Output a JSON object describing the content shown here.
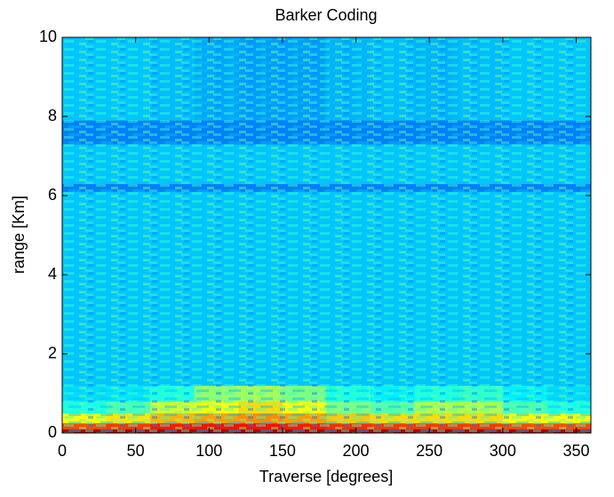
{
  "chart_data": {
    "type": "heatmap",
    "title": "Barker Coding",
    "xlabel": "Traverse [degrees]",
    "ylabel": "range [Km]",
    "xlim": [
      0,
      360
    ],
    "ylim": [
      0,
      10
    ],
    "xticks": [
      0,
      50,
      100,
      150,
      200,
      250,
      300,
      350
    ],
    "yticks": [
      0,
      2,
      4,
      6,
      8,
      10
    ],
    "colormap": "jet",
    "zlim": [
      0,
      1
    ],
    "x_bins": [
      0,
      30,
      60,
      90,
      120,
      150,
      180,
      210,
      240,
      270,
      300,
      330,
      360
    ],
    "y_bins": [
      0,
      0.1,
      0.25,
      0.5,
      0.8,
      1.2,
      6.1,
      6.3,
      7.3,
      7.9,
      10
    ],
    "z": [
      [
        0.95,
        0.95,
        0.95,
        0.95,
        0.95,
        0.95,
        0.95,
        0.95,
        0.95,
        0.95,
        0.95,
        0.95
      ],
      [
        0.8,
        0.82,
        0.85,
        0.86,
        0.86,
        0.85,
        0.83,
        0.82,
        0.82,
        0.82,
        0.8,
        0.8
      ],
      [
        0.62,
        0.65,
        0.7,
        0.72,
        0.74,
        0.72,
        0.68,
        0.66,
        0.66,
        0.66,
        0.63,
        0.62
      ],
      [
        0.4,
        0.45,
        0.58,
        0.62,
        0.66,
        0.62,
        0.5,
        0.46,
        0.55,
        0.55,
        0.45,
        0.4
      ],
      [
        0.34,
        0.35,
        0.4,
        0.52,
        0.54,
        0.5,
        0.4,
        0.36,
        0.4,
        0.42,
        0.36,
        0.34
      ],
      [
        0.32,
        0.32,
        0.32,
        0.32,
        0.32,
        0.32,
        0.32,
        0.32,
        0.32,
        0.32,
        0.32,
        0.32
      ],
      [
        0.25,
        0.25,
        0.25,
        0.25,
        0.25,
        0.25,
        0.25,
        0.25,
        0.25,
        0.25,
        0.25,
        0.25
      ],
      [
        0.32,
        0.32,
        0.32,
        0.32,
        0.32,
        0.32,
        0.32,
        0.32,
        0.32,
        0.32,
        0.32,
        0.32
      ],
      [
        0.25,
        0.25,
        0.25,
        0.25,
        0.25,
        0.25,
        0.25,
        0.25,
        0.25,
        0.25,
        0.25,
        0.25
      ],
      [
        0.32,
        0.32,
        0.31,
        0.29,
        0.28,
        0.28,
        0.3,
        0.31,
        0.3,
        0.31,
        0.32,
        0.32
      ]
    ]
  }
}
